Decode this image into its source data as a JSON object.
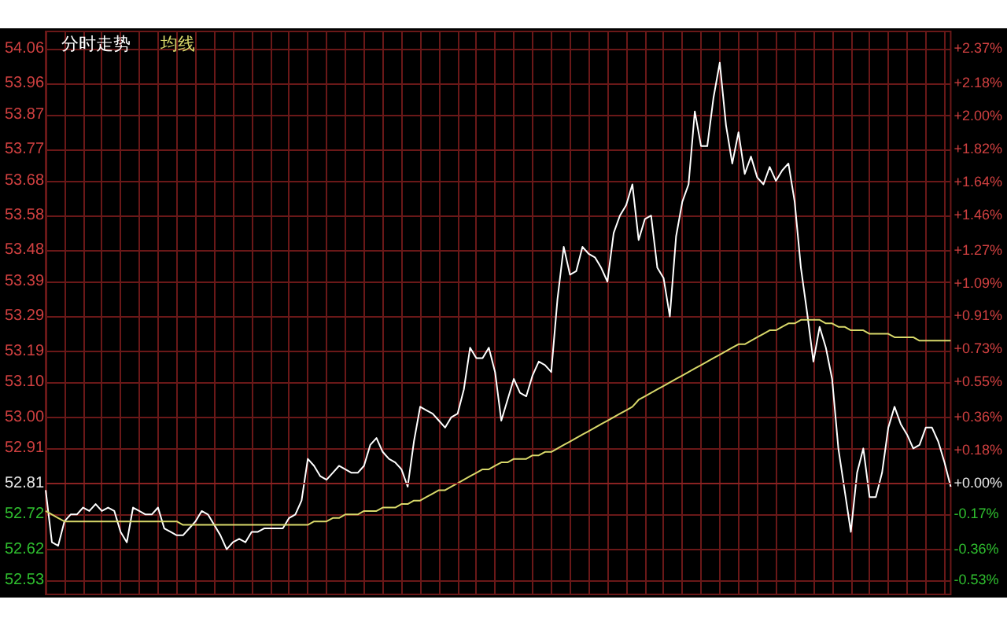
{
  "chart_data": {
    "type": "line",
    "categories": [
      null,
      null,
      null,
      null,
      null,
      null,
      null,
      null,
      null,
      null,
      null,
      null,
      null,
      null,
      null,
      null,
      null,
      null,
      null,
      null,
      null,
      null,
      null,
      null,
      null,
      null,
      null,
      null,
      null,
      null,
      null,
      null,
      null,
      null,
      null,
      null,
      null,
      null,
      null,
      null,
      null,
      null,
      null,
      null,
      null,
      null,
      null,
      null,
      null,
      null,
      null,
      null,
      null,
      null,
      null,
      null,
      null,
      null,
      null,
      null,
      null,
      null,
      null,
      null,
      null,
      null,
      null,
      null,
      null,
      null,
      null,
      null,
      null,
      null,
      null,
      null,
      null,
      null,
      null,
      null,
      null,
      null,
      null,
      null,
      null,
      null,
      null,
      null,
      null,
      null,
      null,
      null,
      null,
      null,
      null,
      null,
      null,
      null,
      null,
      null,
      null,
      null,
      null,
      null,
      null,
      null,
      null,
      null,
      null,
      null,
      null,
      null,
      null,
      null,
      null,
      null,
      null,
      null,
      null,
      null,
      null,
      null,
      null,
      null,
      null,
      null,
      null,
      null,
      null,
      null,
      null,
      null,
      null,
      null,
      null,
      null,
      null,
      null,
      null,
      null,
      null,
      null,
      null,
      null,
      null,
      null
    ],
    "series": [
      {
        "name": "分时走势",
        "color": "#ffffff",
        "values": [
          52.79,
          52.64,
          52.63,
          52.7,
          52.72,
          52.72,
          52.74,
          52.73,
          52.75,
          52.73,
          52.74,
          52.73,
          52.67,
          52.64,
          52.74,
          52.73,
          52.72,
          52.72,
          52.74,
          52.68,
          52.67,
          52.66,
          52.66,
          52.68,
          52.7,
          52.73,
          52.72,
          52.69,
          52.66,
          52.62,
          52.64,
          52.65,
          52.64,
          52.67,
          52.67,
          52.68,
          52.68,
          52.68,
          52.68,
          52.71,
          52.72,
          52.76,
          52.88,
          52.86,
          52.83,
          52.82,
          52.84,
          52.86,
          52.85,
          52.84,
          52.84,
          52.86,
          52.92,
          52.94,
          52.9,
          52.88,
          52.87,
          52.85,
          52.8,
          52.93,
          53.03,
          53.02,
          53.01,
          52.99,
          52.97,
          53.0,
          53.01,
          53.08,
          53.2,
          53.17,
          53.17,
          53.2,
          53.13,
          52.99,
          53.05,
          53.11,
          53.07,
          53.06,
          53.12,
          53.16,
          53.15,
          53.13,
          53.34,
          53.49,
          53.41,
          53.42,
          53.49,
          53.47,
          53.46,
          53.43,
          53.39,
          53.53,
          53.58,
          53.61,
          53.67,
          53.51,
          53.57,
          53.58,
          53.43,
          53.4,
          53.29,
          53.52,
          53.62,
          53.67,
          53.88,
          53.78,
          53.78,
          53.92,
          54.02,
          53.84,
          53.73,
          53.82,
          53.7,
          53.75,
          53.69,
          53.67,
          53.72,
          53.68,
          53.71,
          53.73,
          53.62,
          53.43,
          53.3,
          53.16,
          53.26,
          53.2,
          53.11,
          52.91,
          52.79,
          52.67,
          52.84,
          52.91,
          52.77,
          52.77,
          52.84,
          52.97,
          53.03,
          52.98,
          52.95,
          52.91,
          52.92,
          52.97,
          52.97,
          52.93,
          52.87,
          52.8
        ]
      },
      {
        "name": "均线",
        "color": "#d8d86a",
        "values": [
          52.73,
          52.72,
          52.71,
          52.7,
          52.7,
          52.7,
          52.7,
          52.7,
          52.7,
          52.7,
          52.7,
          52.7,
          52.7,
          52.7,
          52.7,
          52.7,
          52.7,
          52.7,
          52.7,
          52.7,
          52.7,
          52.7,
          52.69,
          52.69,
          52.69,
          52.69,
          52.69,
          52.69,
          52.69,
          52.69,
          52.69,
          52.69,
          52.69,
          52.69,
          52.69,
          52.69,
          52.69,
          52.69,
          52.69,
          52.69,
          52.69,
          52.69,
          52.69,
          52.7,
          52.7,
          52.7,
          52.71,
          52.71,
          52.72,
          52.72,
          52.72,
          52.73,
          52.73,
          52.73,
          52.74,
          52.74,
          52.74,
          52.75,
          52.75,
          52.76,
          52.76,
          52.77,
          52.78,
          52.79,
          52.79,
          52.8,
          52.81,
          52.82,
          52.83,
          52.84,
          52.85,
          52.85,
          52.86,
          52.87,
          52.87,
          52.88,
          52.88,
          52.88,
          52.89,
          52.89,
          52.9,
          52.9,
          52.91,
          52.92,
          52.93,
          52.94,
          52.95,
          52.96,
          52.97,
          52.98,
          52.99,
          53.0,
          53.01,
          53.02,
          53.03,
          53.05,
          53.06,
          53.07,
          53.08,
          53.09,
          53.1,
          53.11,
          53.12,
          53.13,
          53.14,
          53.15,
          53.16,
          53.17,
          53.18,
          53.19,
          53.2,
          53.21,
          53.21,
          53.22,
          53.23,
          53.24,
          53.25,
          53.25,
          53.26,
          53.27,
          53.27,
          53.28,
          53.28,
          53.28,
          53.28,
          53.27,
          53.27,
          53.26,
          53.26,
          53.25,
          53.25,
          53.25,
          53.24,
          53.24,
          53.24,
          53.24,
          53.23,
          53.23,
          53.23,
          53.23,
          53.22,
          53.22,
          53.22,
          53.22,
          53.22,
          53.22
        ]
      }
    ],
    "ylim": [
      52.49,
      54.11
    ],
    "yticks": [
      54.06,
      53.96,
      53.87,
      53.77,
      53.68,
      53.58,
      53.48,
      53.39,
      53.29,
      53.19,
      {
        "value": 53.1,
        "label": "53.10"
      },
      {
        "value": 53.0,
        "label": "53.00"
      },
      52.91,
      52.81,
      52.72,
      52.62,
      52.53
    ],
    "y2lim": [
      -0.61,
      2.46
    ],
    "y2ticks": [
      {
        "value": 2.37,
        "label": "+2.37%"
      },
      {
        "value": 2.18,
        "label": "+2.18%"
      },
      {
        "value": 2.0,
        "label": "+2.00%"
      },
      {
        "value": 1.82,
        "label": "+1.82%"
      },
      {
        "value": 1.64,
        "label": "+1.64%"
      },
      {
        "value": 1.46,
        "label": "+1.46%"
      },
      {
        "value": 1.27,
        "label": "+1.27%"
      },
      {
        "value": 1.09,
        "label": "+1.09%"
      },
      {
        "value": 0.91,
        "label": "+0.91%"
      },
      {
        "value": 0.73,
        "label": "+0.73%"
      },
      {
        "value": 0.55,
        "label": "+0.55%"
      },
      {
        "value": 0.36,
        "label": "+0.36%"
      },
      {
        "value": 0.18,
        "label": "+0.18%"
      },
      {
        "value": 0,
        "label": "+0.00%"
      },
      {
        "value": -0.17,
        "label": "-0.17%"
      },
      {
        "value": -0.36,
        "label": "-0.36%"
      },
      {
        "value": -0.53,
        "label": "-0.53%"
      }
    ],
    "ref_lines": [
      {
        "axis": "y",
        "value": 52.81,
        "color": "#8a2222"
      }
    ],
    "grid": true,
    "legend": "top left",
    "line_style": "solid"
  }
}
